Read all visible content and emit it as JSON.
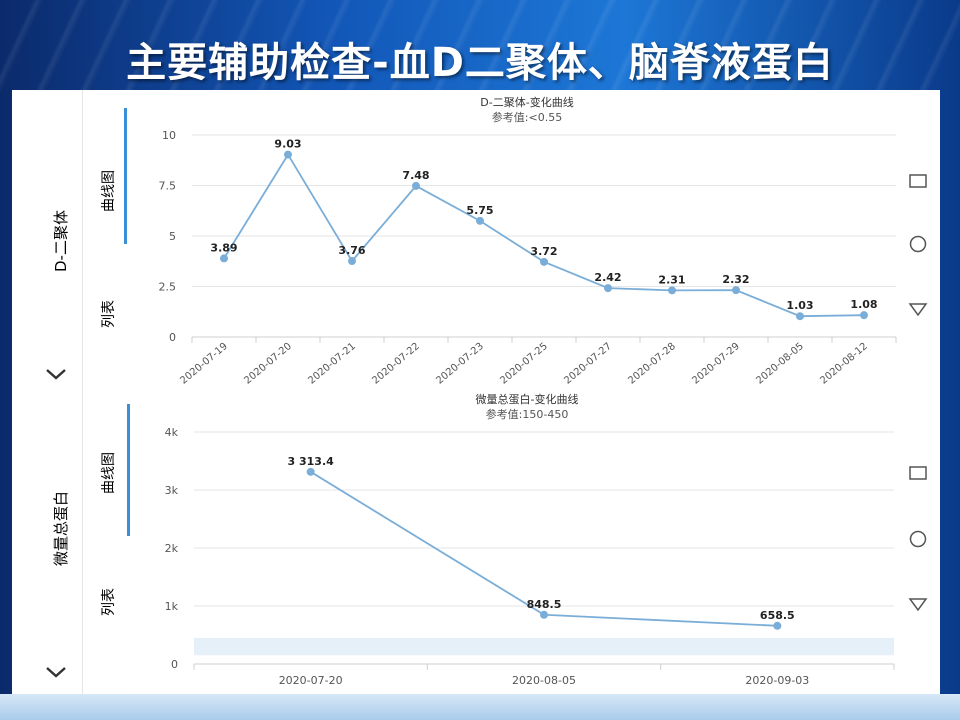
{
  "slide": {
    "title": "主要辅助检查-血D二聚体、脑脊液蛋白"
  },
  "panel1": {
    "side_label": "D-二聚体",
    "tab_curve": "曲线图",
    "tab_list": "列表"
  },
  "panel2": {
    "side_label": "微量总蛋白",
    "tab_curve": "曲线图",
    "tab_list": "列表"
  },
  "chart_data": [
    {
      "type": "line",
      "title": "D-二聚体-变化曲线",
      "subtitle": "参考值:<0.55",
      "categories": [
        "2020-07-19",
        "2020-07-20",
        "2020-07-21",
        "2020-07-22",
        "2020-07-23",
        "2020-07-25",
        "2020-07-27",
        "2020-07-28",
        "2020-07-29",
        "2020-08-05",
        "2020-08-12"
      ],
      "values": [
        3.89,
        9.03,
        3.76,
        7.48,
        5.75,
        3.72,
        2.42,
        2.31,
        2.32,
        1.03,
        1.08
      ],
      "labels": [
        "3.89",
        "9.03",
        "3.76",
        "7.48",
        "5.75",
        "3.72",
        "2.42",
        "2.31",
        "2.32",
        "1.03",
        "1.08"
      ],
      "yticks": [
        "0",
        "2.5",
        "5",
        "7.5",
        "10"
      ],
      "ylim": [
        0,
        10
      ],
      "color": "#7aaed8",
      "grid": true
    },
    {
      "type": "line",
      "title": "微量总蛋白-变化曲线",
      "subtitle": "参考值:150-450",
      "categories": [
        "2020-07-20",
        "2020-08-05",
        "2020-09-03"
      ],
      "values": [
        3313.4,
        848.5,
        658.5
      ],
      "labels": [
        "3 313.4",
        "848.5",
        "658.5"
      ],
      "yticks": [
        "0",
        "1k",
        "2k",
        "3k",
        "4k"
      ],
      "ylim": [
        0,
        4000
      ],
      "reference_band": [
        150,
        450
      ],
      "color": "#7aaed8",
      "grid": true
    }
  ]
}
